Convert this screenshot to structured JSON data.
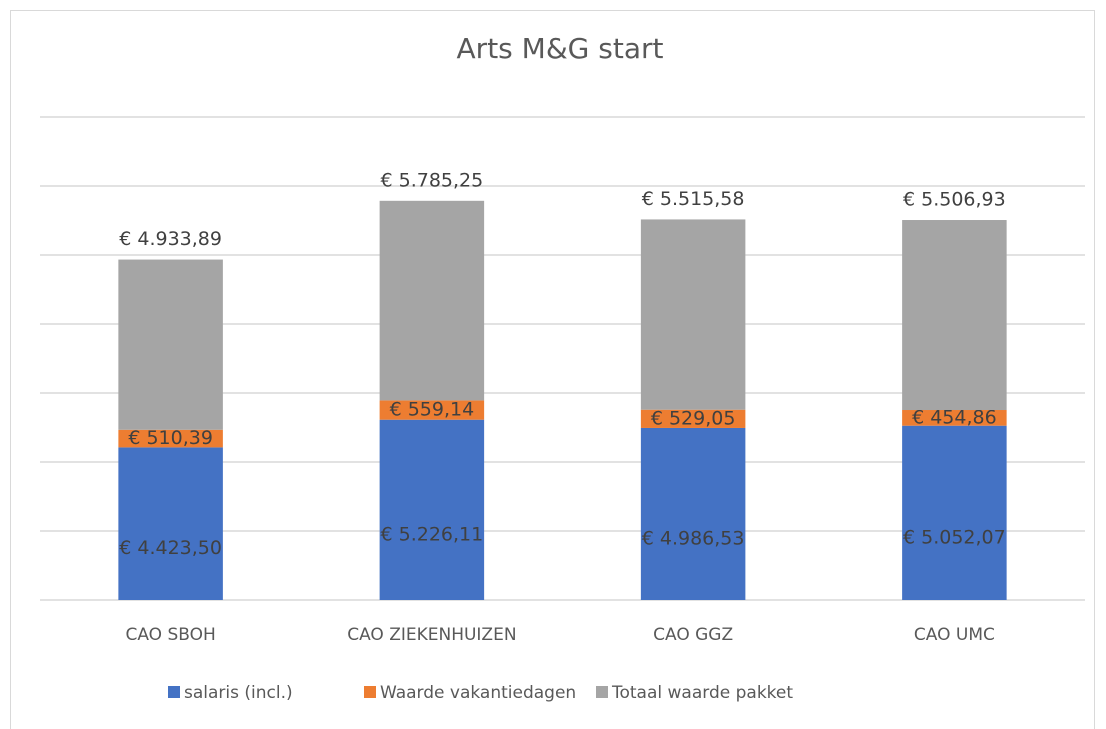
{
  "chart_data": {
    "type": "stacked_bar",
    "title": "Arts M&G start",
    "categories": [
      "CAO SBOH",
      "CAO ZIEKENHUIZEN",
      "CAO GGZ",
      "CAO UMC"
    ],
    "series": [
      {
        "name": "salaris (incl.)",
        "color": "#4472c4",
        "values": [
          4423.5,
          5226.11,
          4986.53,
          5052.07
        ],
        "value_labels": [
          "€ 4.423,50",
          "€ 5.226,11",
          "€ 4.986,53",
          "€ 5.052,07"
        ]
      },
      {
        "name": "Waarde vakantiedagen",
        "color": "#ed7d31",
        "values": [
          510.39,
          559.14,
          529.05,
          454.86
        ],
        "value_labels": [
          "€ 510,39",
          "€ 559,14",
          "€ 529,05",
          "€ 454,86"
        ]
      },
      {
        "name": "Totaal  waarde pakket",
        "color": "#a5a5a5",
        "values": [
          4933.89,
          5785.25,
          5515.58,
          5506.93
        ],
        "value_labels": [
          "€ 4.933,89",
          "€ 5.785,25",
          "€ 5.515,58",
          "€ 5.506,93"
        ]
      }
    ],
    "ylim": [
      0,
      14000
    ],
    "yticks": [
      0,
      2000,
      4000,
      6000,
      8000,
      10000,
      12000,
      14000
    ],
    "grid": true,
    "legend": "bottom"
  }
}
